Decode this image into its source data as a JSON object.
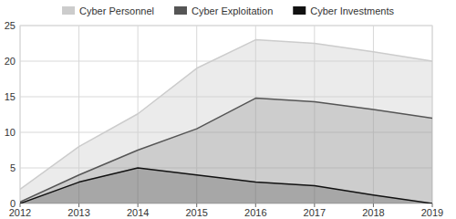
{
  "chart_data": {
    "type": "area",
    "x": [
      2012,
      2013,
      2014,
      2015,
      2016,
      2017,
      2018,
      2019
    ],
    "xlim": [
      2012,
      2019
    ],
    "xticks": [
      2012,
      2013,
      2014,
      2015,
      2016,
      2017,
      2018,
      2019
    ],
    "ylim": [
      0,
      25
    ],
    "yticks": [
      0,
      5,
      10,
      15,
      20,
      25
    ],
    "grid": true,
    "legend": "top",
    "stacked": false,
    "series": [
      {
        "name": "Cyber Personnel",
        "color": "#cccccc",
        "values": [
          2,
          8,
          12.6,
          19,
          23,
          22.5,
          21.3,
          20
        ]
      },
      {
        "name": "Cyber Exploitation",
        "color": "#555555",
        "values": [
          0.2,
          4,
          7.5,
          10.5,
          14.8,
          14.3,
          13.2,
          12
        ]
      },
      {
        "name": "Cyber Investments",
        "color": "#111111",
        "values": [
          0,
          3,
          5,
          4,
          3,
          2.5,
          1.2,
          0
        ]
      }
    ]
  }
}
